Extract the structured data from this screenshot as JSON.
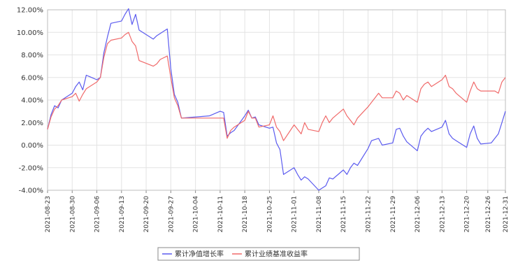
{
  "chart_data": {
    "type": "line",
    "title": "",
    "xlabel": "",
    "ylabel": "",
    "y_unit": "%",
    "ylim": [
      -4.0,
      12.0
    ],
    "y_ticks": [
      "12.00%",
      "10.00%",
      "8.00%",
      "6.00%",
      "4.00%",
      "2.00%",
      "0.00%",
      "-2.00%",
      "-4.00%"
    ],
    "y_tick_values": [
      12,
      10,
      8,
      6,
      4,
      2,
      0,
      -2,
      -4
    ],
    "x_tick_labels": [
      "2021-08-23",
      "2021-08-30",
      "2021-09-06",
      "2021-09-13",
      "2021-09-20",
      "2021-09-27",
      "2021-10-04",
      "2021-10-11",
      "2021-10-18",
      "2021-10-25",
      "2021-11-01",
      "2021-11-08",
      "2021-11-15",
      "2021-11-22",
      "2021-11-29",
      "2021-12-06",
      "2021-12-13",
      "2021-12-20",
      "2021-12-26",
      "2021-12-31"
    ],
    "x_range": [
      "2021-08-23",
      "2021-12-31"
    ],
    "grid": true,
    "legend_position": "bottom",
    "series": [
      {
        "name": "累计净值增长率",
        "color": "#5b5bef",
        "points": [
          [
            "2021-08-23",
            1.4
          ],
          [
            "2021-08-24",
            2.7
          ],
          [
            "2021-08-25",
            3.5
          ],
          [
            "2021-08-26",
            3.3
          ],
          [
            "2021-08-27",
            4.0
          ],
          [
            "2021-08-30",
            4.6
          ],
          [
            "2021-08-31",
            5.2
          ],
          [
            "2021-09-01",
            5.6
          ],
          [
            "2021-09-02",
            4.9
          ],
          [
            "2021-09-03",
            6.2
          ],
          [
            "2021-09-06",
            5.8
          ],
          [
            "2021-09-07",
            6.0
          ],
          [
            "2021-09-08",
            8.2
          ],
          [
            "2021-09-09",
            9.6
          ],
          [
            "2021-09-10",
            10.8
          ],
          [
            "2021-09-13",
            11.0
          ],
          [
            "2021-09-14",
            11.6
          ],
          [
            "2021-09-15",
            12.1
          ],
          [
            "2021-09-16",
            10.7
          ],
          [
            "2021-09-17",
            11.6
          ],
          [
            "2021-09-18",
            10.2
          ],
          [
            "2021-09-22",
            9.4
          ],
          [
            "2021-09-23",
            9.7
          ],
          [
            "2021-09-24",
            9.9
          ],
          [
            "2021-09-26",
            10.3
          ],
          [
            "2021-09-27",
            6.8
          ],
          [
            "2021-09-28",
            4.5
          ],
          [
            "2021-09-29",
            3.8
          ],
          [
            "2021-09-30",
            2.4
          ],
          [
            "2021-10-08",
            2.6
          ],
          [
            "2021-10-11",
            3.0
          ],
          [
            "2021-10-12",
            2.9
          ],
          [
            "2021-10-13",
            0.8
          ],
          [
            "2021-10-14",
            1.1
          ],
          [
            "2021-10-15",
            1.3
          ],
          [
            "2021-10-18",
            2.6
          ],
          [
            "2021-10-19",
            3.1
          ],
          [
            "2021-10-20",
            2.4
          ],
          [
            "2021-10-21",
            2.5
          ],
          [
            "2021-10-22",
            1.8
          ],
          [
            "2021-10-25",
            1.5
          ],
          [
            "2021-10-26",
            1.6
          ],
          [
            "2021-10-27",
            0.2
          ],
          [
            "2021-10-28",
            -0.4
          ],
          [
            "2021-10-29",
            -2.6
          ],
          [
            "2021-11-01",
            -2.0
          ],
          [
            "2021-11-02",
            -2.6
          ],
          [
            "2021-11-03",
            -3.1
          ],
          [
            "2021-11-04",
            -2.8
          ],
          [
            "2021-11-05",
            -3.0
          ],
          [
            "2021-11-08",
            -4.0
          ],
          [
            "2021-11-09",
            -3.8
          ],
          [
            "2021-11-10",
            -3.6
          ],
          [
            "2021-11-11",
            -2.9
          ],
          [
            "2021-11-12",
            -3.0
          ],
          [
            "2021-11-15",
            -2.2
          ],
          [
            "2021-11-16",
            -2.6
          ],
          [
            "2021-11-17",
            -2.0
          ],
          [
            "2021-11-18",
            -1.6
          ],
          [
            "2021-11-19",
            -1.8
          ],
          [
            "2021-11-22",
            -0.3
          ],
          [
            "2021-11-23",
            0.4
          ],
          [
            "2021-11-24",
            0.5
          ],
          [
            "2021-11-25",
            0.6
          ],
          [
            "2021-11-26",
            0.0
          ],
          [
            "2021-11-29",
            0.2
          ],
          [
            "2021-11-30",
            1.4
          ],
          [
            "2021-12-01",
            1.5
          ],
          [
            "2021-12-02",
            0.8
          ],
          [
            "2021-12-03",
            0.3
          ],
          [
            "2021-12-06",
            -0.5
          ],
          [
            "2021-12-07",
            0.8
          ],
          [
            "2021-12-08",
            1.2
          ],
          [
            "2021-12-09",
            1.5
          ],
          [
            "2021-12-10",
            1.2
          ],
          [
            "2021-12-13",
            1.6
          ],
          [
            "2021-12-14",
            2.2
          ],
          [
            "2021-12-15",
            1.0
          ],
          [
            "2021-12-16",
            0.6
          ],
          [
            "2021-12-17",
            0.4
          ],
          [
            "2021-12-20",
            -0.2
          ],
          [
            "2021-12-21",
            1.0
          ],
          [
            "2021-12-22",
            1.7
          ],
          [
            "2021-12-23",
            0.6
          ],
          [
            "2021-12-24",
            0.1
          ],
          [
            "2021-12-27",
            0.2
          ],
          [
            "2021-12-28",
            0.6
          ],
          [
            "2021-12-29",
            1.0
          ],
          [
            "2021-12-30",
            2.0
          ],
          [
            "2021-12-31",
            3.0
          ]
        ]
      },
      {
        "name": "累计业绩基准收益率",
        "color": "#f06a6a",
        "points": [
          [
            "2021-08-23",
            1.4
          ],
          [
            "2021-08-24",
            2.5
          ],
          [
            "2021-08-25",
            3.2
          ],
          [
            "2021-08-26",
            3.5
          ],
          [
            "2021-08-27",
            4.0
          ],
          [
            "2021-08-30",
            4.3
          ],
          [
            "2021-08-31",
            4.6
          ],
          [
            "2021-09-01",
            3.9
          ],
          [
            "2021-09-02",
            4.5
          ],
          [
            "2021-09-03",
            5.0
          ],
          [
            "2021-09-06",
            5.6
          ],
          [
            "2021-09-07",
            6.0
          ],
          [
            "2021-09-08",
            7.8
          ],
          [
            "2021-09-09",
            9.0
          ],
          [
            "2021-09-10",
            9.3
          ],
          [
            "2021-09-13",
            9.5
          ],
          [
            "2021-09-14",
            9.8
          ],
          [
            "2021-09-15",
            10.0
          ],
          [
            "2021-09-16",
            9.2
          ],
          [
            "2021-09-17",
            8.8
          ],
          [
            "2021-09-18",
            7.5
          ],
          [
            "2021-09-22",
            7.0
          ],
          [
            "2021-09-23",
            7.2
          ],
          [
            "2021-09-24",
            7.6
          ],
          [
            "2021-09-26",
            7.9
          ],
          [
            "2021-09-27",
            6.0
          ],
          [
            "2021-09-28",
            4.2
          ],
          [
            "2021-09-29",
            3.5
          ],
          [
            "2021-09-30",
            2.4
          ],
          [
            "2021-10-08",
            2.4
          ],
          [
            "2021-10-11",
            2.4
          ],
          [
            "2021-10-12",
            2.4
          ],
          [
            "2021-10-13",
            0.6
          ],
          [
            "2021-10-14",
            1.3
          ],
          [
            "2021-10-15",
            1.6
          ],
          [
            "2021-10-18",
            2.2
          ],
          [
            "2021-10-19",
            3.0
          ],
          [
            "2021-10-20",
            2.4
          ],
          [
            "2021-10-21",
            2.4
          ],
          [
            "2021-10-22",
            1.6
          ],
          [
            "2021-10-25",
            1.8
          ],
          [
            "2021-10-26",
            2.6
          ],
          [
            "2021-10-27",
            1.6
          ],
          [
            "2021-10-28",
            1.2
          ],
          [
            "2021-10-29",
            0.4
          ],
          [
            "2021-11-01",
            1.8
          ],
          [
            "2021-11-02",
            1.4
          ],
          [
            "2021-11-03",
            1.0
          ],
          [
            "2021-11-04",
            2.0
          ],
          [
            "2021-11-05",
            1.4
          ],
          [
            "2021-11-08",
            1.2
          ],
          [
            "2021-11-09",
            2.0
          ],
          [
            "2021-11-10",
            2.6
          ],
          [
            "2021-11-11",
            2.0
          ],
          [
            "2021-11-12",
            2.4
          ],
          [
            "2021-11-15",
            3.2
          ],
          [
            "2021-11-16",
            2.6
          ],
          [
            "2021-11-17",
            2.2
          ],
          [
            "2021-11-18",
            1.8
          ],
          [
            "2021-11-19",
            2.4
          ],
          [
            "2021-11-22",
            3.4
          ],
          [
            "2021-11-23",
            3.8
          ],
          [
            "2021-11-24",
            4.2
          ],
          [
            "2021-11-25",
            4.6
          ],
          [
            "2021-11-26",
            4.2
          ],
          [
            "2021-11-29",
            4.2
          ],
          [
            "2021-11-30",
            4.8
          ],
          [
            "2021-12-01",
            4.6
          ],
          [
            "2021-12-02",
            4.0
          ],
          [
            "2021-12-03",
            4.4
          ],
          [
            "2021-12-06",
            3.8
          ],
          [
            "2021-12-07",
            5.0
          ],
          [
            "2021-12-08",
            5.4
          ],
          [
            "2021-12-09",
            5.6
          ],
          [
            "2021-12-10",
            5.2
          ],
          [
            "2021-12-13",
            5.8
          ],
          [
            "2021-12-14",
            6.2
          ],
          [
            "2021-12-15",
            5.2
          ],
          [
            "2021-12-16",
            5.0
          ],
          [
            "2021-12-17",
            4.6
          ],
          [
            "2021-12-20",
            3.8
          ],
          [
            "2021-12-21",
            4.8
          ],
          [
            "2021-12-22",
            5.6
          ],
          [
            "2021-12-23",
            5.0
          ],
          [
            "2021-12-24",
            4.8
          ],
          [
            "2021-12-27",
            4.8
          ],
          [
            "2021-12-28",
            4.8
          ],
          [
            "2021-12-29",
            4.6
          ],
          [
            "2021-12-30",
            5.6
          ],
          [
            "2021-12-31",
            6.0
          ]
        ]
      }
    ]
  },
  "legend": {
    "items": [
      {
        "label": "累计净值增长率",
        "color": "#5b5bef"
      },
      {
        "label": "累计业绩基准收益率",
        "color": "#f06a6a"
      }
    ]
  }
}
